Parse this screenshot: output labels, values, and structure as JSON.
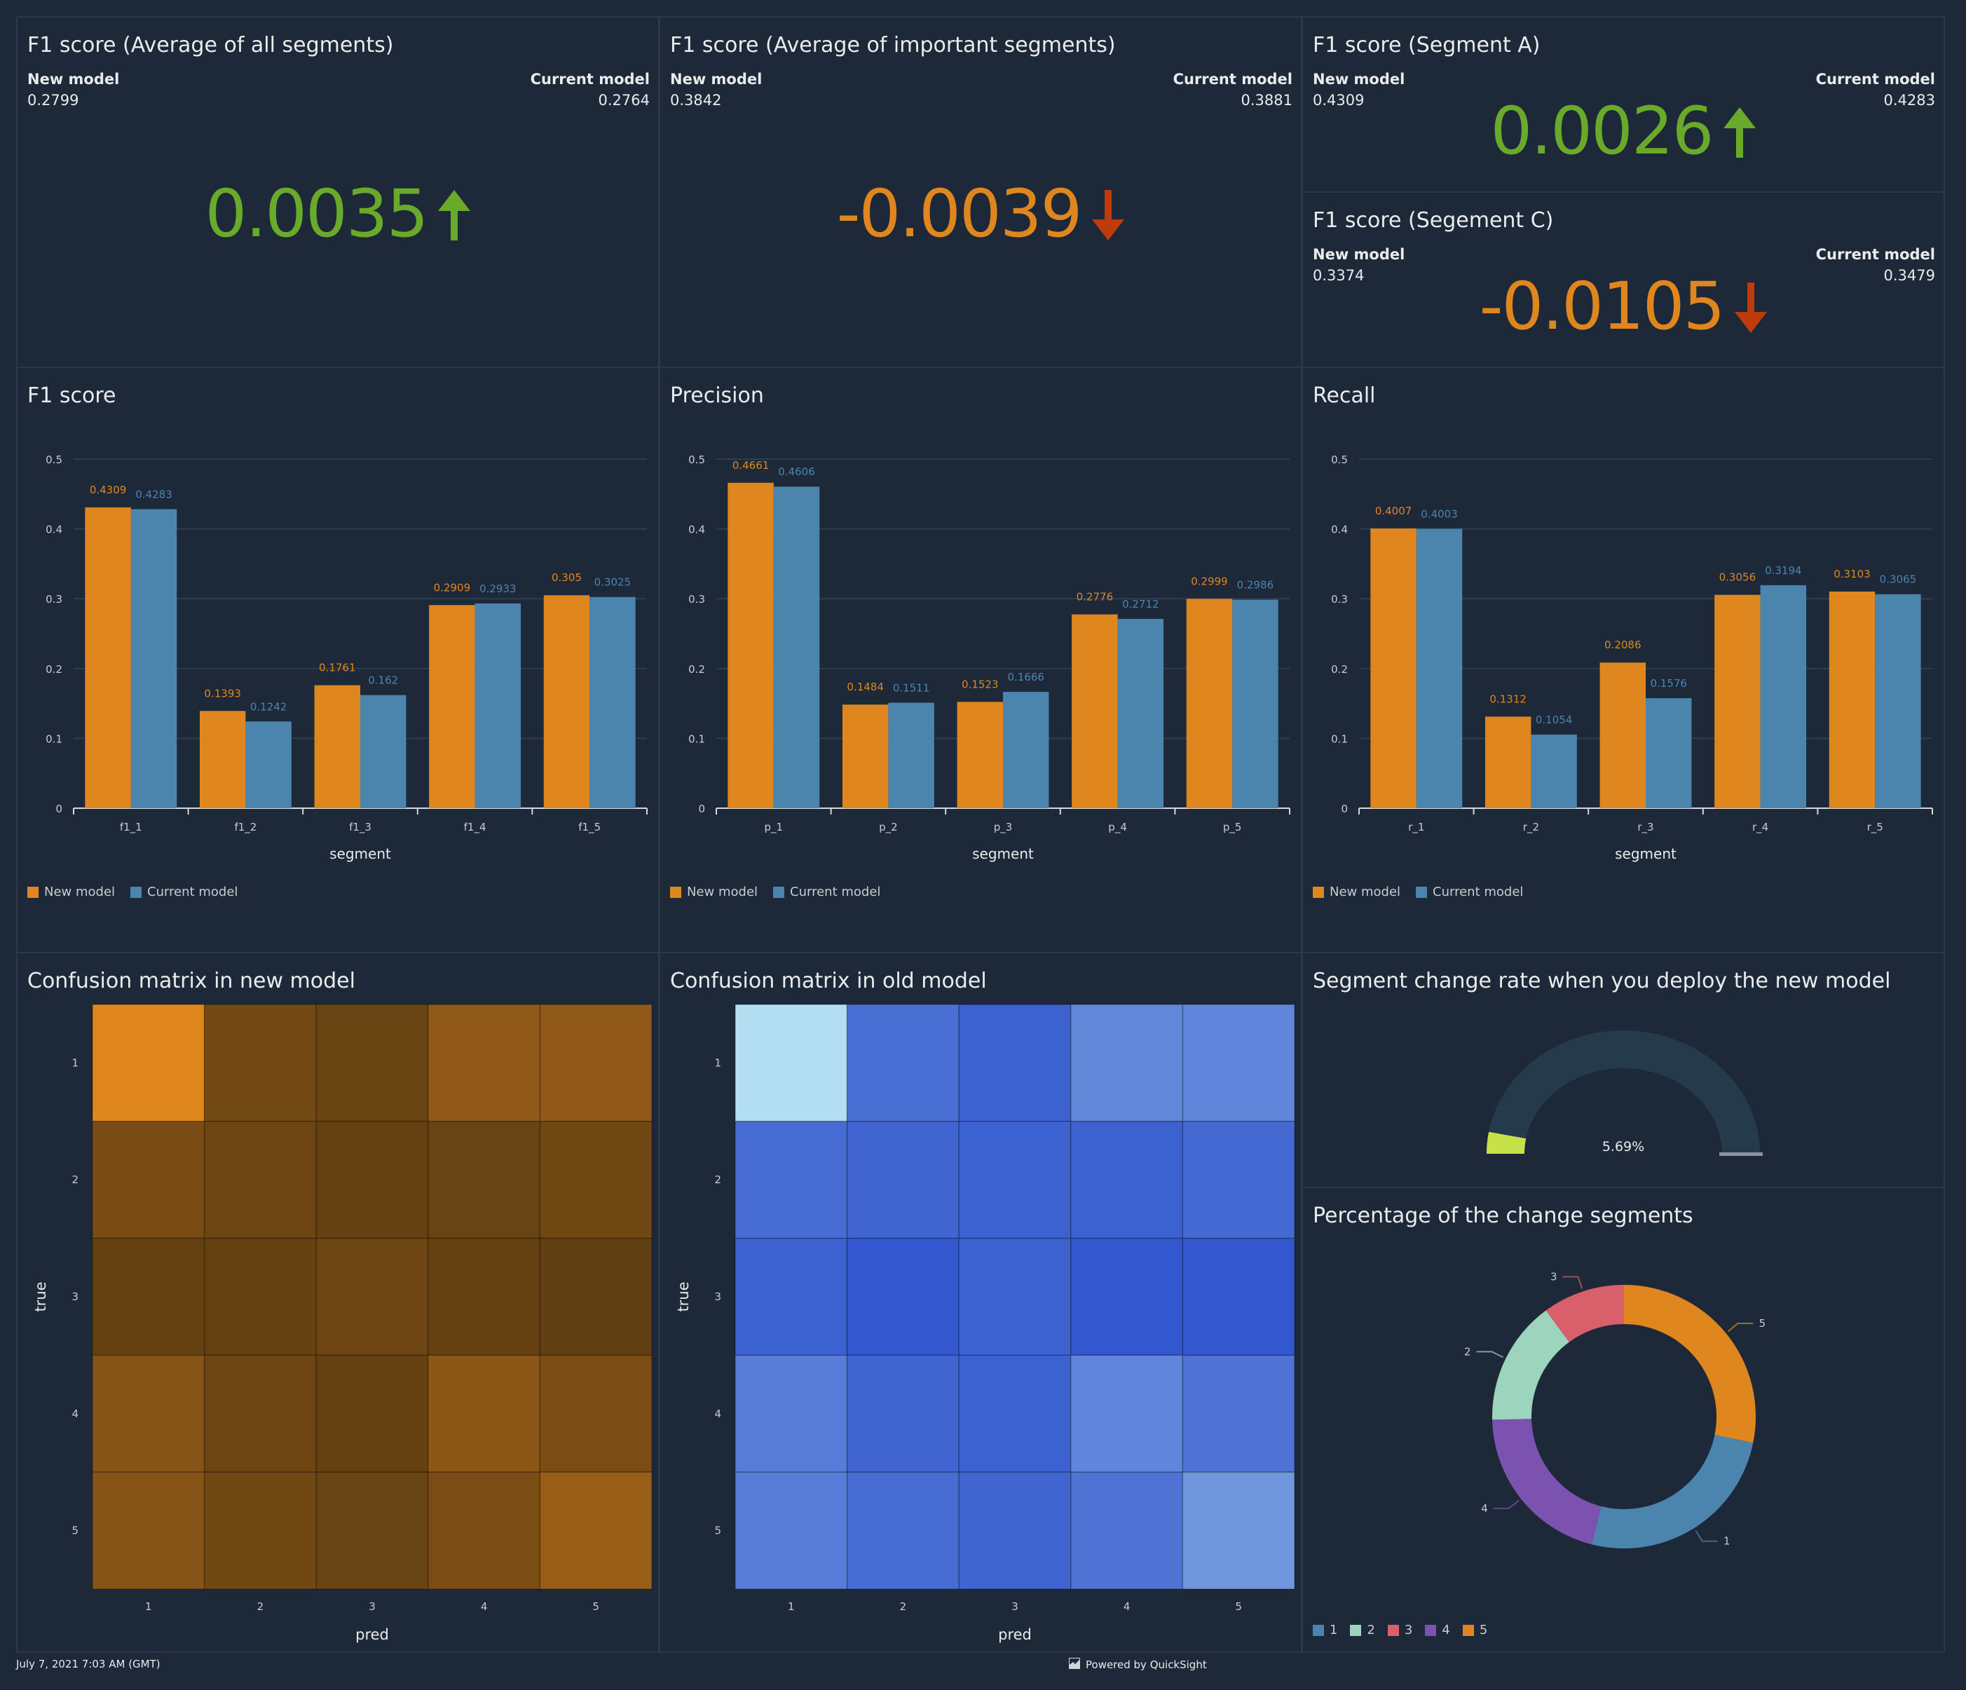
{
  "footer": {
    "timestamp": "July 7, 2021 7:03 AM (GMT)",
    "powered_by": "Powered by QuickSight"
  },
  "colors": {
    "new_model": "#e0861f",
    "current_model": "#4b85ad",
    "positive": "#6aaa2a",
    "negative_value": "#e0861f",
    "negative_arrow": "#bf3b0c",
    "gauge_fill": "#c7e148",
    "gauge_track": "#253b4c"
  },
  "kpis": [
    {
      "title": "F1 score (Average of all segments)",
      "new_label": "New model",
      "new_value": "0.2799",
      "current_label": "Current model",
      "current_value": "0.2764",
      "delta": "0.0035",
      "direction": "up"
    },
    {
      "title": "F1 score (Average of important segments)",
      "new_label": "New model",
      "new_value": "0.3842",
      "current_label": "Current model",
      "current_value": "0.3881",
      "delta": "-0.0039",
      "direction": "down"
    },
    {
      "title": "F1 score (Segment A)",
      "new_label": "New model",
      "new_value": "0.4309",
      "current_label": "Current model",
      "current_value": "0.4283",
      "delta": "0.0026",
      "direction": "up"
    },
    {
      "title": "F1 score (Segement C)",
      "new_label": "New model",
      "new_value": "0.3374",
      "current_label": "Current model",
      "current_value": "0.3479",
      "delta": "-0.0105",
      "direction": "down"
    }
  ],
  "chart_data": [
    {
      "id": "f1",
      "type": "bar",
      "title": "F1 score",
      "xlabel": "segment",
      "ylabel": "",
      "ylim": [
        0,
        0.5
      ],
      "yticks": [
        "0",
        "0.1",
        "0.2",
        "0.3",
        "0.4",
        "0.5"
      ],
      "grid": true,
      "legend": "bottom-left",
      "categories": [
        "f1_1",
        "f1_2",
        "f1_3",
        "f1_4",
        "f1_5"
      ],
      "series": [
        {
          "name": "New model",
          "values": [
            0.4309,
            0.1393,
            0.1761,
            0.2909,
            0.305
          ],
          "labels": [
            "0.4309",
            "0.1393",
            "0.1761",
            "0.2909",
            "0.305"
          ]
        },
        {
          "name": "Current model",
          "values": [
            0.4283,
            0.1242,
            0.162,
            0.2933,
            0.3025
          ],
          "labels": [
            "0.4283",
            "0.1242",
            "0.162",
            "0.2933",
            "0.3025"
          ]
        }
      ]
    },
    {
      "id": "precision",
      "type": "bar",
      "title": "Precision",
      "xlabel": "segment",
      "ylabel": "",
      "ylim": [
        0,
        0.5
      ],
      "yticks": [
        "0",
        "0.1",
        "0.2",
        "0.3",
        "0.4",
        "0.5"
      ],
      "grid": true,
      "legend": "bottom-left",
      "categories": [
        "p_1",
        "p_2",
        "p_3",
        "p_4",
        "p_5"
      ],
      "series": [
        {
          "name": "New model",
          "values": [
            0.4661,
            0.1484,
            0.1523,
            0.2776,
            0.2999
          ],
          "labels": [
            "0.4661",
            "0.1484",
            "0.1523",
            "0.2776",
            "0.2999"
          ]
        },
        {
          "name": "Current model",
          "values": [
            0.4606,
            0.1511,
            0.1666,
            0.2712,
            0.2986
          ],
          "labels": [
            "0.4606",
            "0.1511",
            "0.1666",
            "0.2712",
            "0.2986"
          ]
        }
      ]
    },
    {
      "id": "recall",
      "type": "bar",
      "title": "Recall",
      "xlabel": "segment",
      "ylabel": "",
      "ylim": [
        0,
        0.5
      ],
      "yticks": [
        "0",
        "0.1",
        "0.2",
        "0.3",
        "0.4",
        "0.5"
      ],
      "grid": true,
      "legend": "bottom-left",
      "categories": [
        "r_1",
        "r_2",
        "r_3",
        "r_4",
        "r_5"
      ],
      "series": [
        {
          "name": "New model",
          "values": [
            0.4007,
            0.1312,
            0.2086,
            0.3056,
            0.3103
          ],
          "labels": [
            "0.4007",
            "0.1312",
            "0.2086",
            "0.3056",
            "0.3103"
          ]
        },
        {
          "name": "Current model",
          "values": [
            0.4003,
            0.1054,
            0.1576,
            0.3194,
            0.3065
          ],
          "labels": [
            "0.4003",
            "0.1054",
            "0.1576",
            "0.3194",
            "0.3065"
          ]
        }
      ]
    },
    {
      "id": "cm_new",
      "type": "heatmap",
      "title": "Confusion matrix in new model",
      "xlabel": "pred",
      "ylabel": "true",
      "x": [
        "1",
        "2",
        "3",
        "4",
        "5"
      ],
      "y": [
        "1",
        "2",
        "3",
        "4",
        "5"
      ],
      "palette": {
        "low": "#4f3510",
        "high": "#e0861f"
      },
      "values": [
        [
          1.0,
          0.25,
          0.18,
          0.45,
          0.45
        ],
        [
          0.28,
          0.2,
          0.15,
          0.17,
          0.23
        ],
        [
          0.15,
          0.15,
          0.2,
          0.15,
          0.12
        ],
        [
          0.38,
          0.2,
          0.15,
          0.42,
          0.3
        ],
        [
          0.38,
          0.23,
          0.17,
          0.3,
          0.5
        ]
      ]
    },
    {
      "id": "cm_old",
      "type": "heatmap",
      "title": "Confusion matrix in old model",
      "xlabel": "pred",
      "ylabel": "true",
      "x": [
        "1",
        "2",
        "3",
        "4",
        "5"
      ],
      "y": [
        "1",
        "2",
        "3",
        "4",
        "5"
      ],
      "palette": {
        "low": "#2c50cc",
        "high": "#b3ddf0"
      },
      "values": [
        [
          1.0,
          0.22,
          0.12,
          0.4,
          0.38
        ],
        [
          0.2,
          0.15,
          0.12,
          0.12,
          0.18
        ],
        [
          0.12,
          0.05,
          0.12,
          0.05,
          0.05
        ],
        [
          0.32,
          0.15,
          0.12,
          0.38,
          0.25
        ],
        [
          0.32,
          0.2,
          0.15,
          0.25,
          0.5
        ]
      ]
    },
    {
      "id": "gauge",
      "type": "gauge",
      "title": "Segment change rate when you deploy the new model",
      "value": 5.69,
      "max": 100,
      "label": "5.69%"
    },
    {
      "id": "donut",
      "type": "pie",
      "title": "Percentage of the change segments",
      "categories": [
        "1",
        "2",
        "3",
        "4",
        "5"
      ],
      "values": [
        25.8,
        15.3,
        10.1,
        20.7,
        28.2
      ],
      "colors": [
        "#4b85ad",
        "#9dd4bd",
        "#d95f6b",
        "#7c52b0",
        "#e0861f"
      ],
      "draw_order": [
        "5",
        "1",
        "4",
        "2",
        "3"
      ],
      "legend": "bottom-left"
    }
  ]
}
